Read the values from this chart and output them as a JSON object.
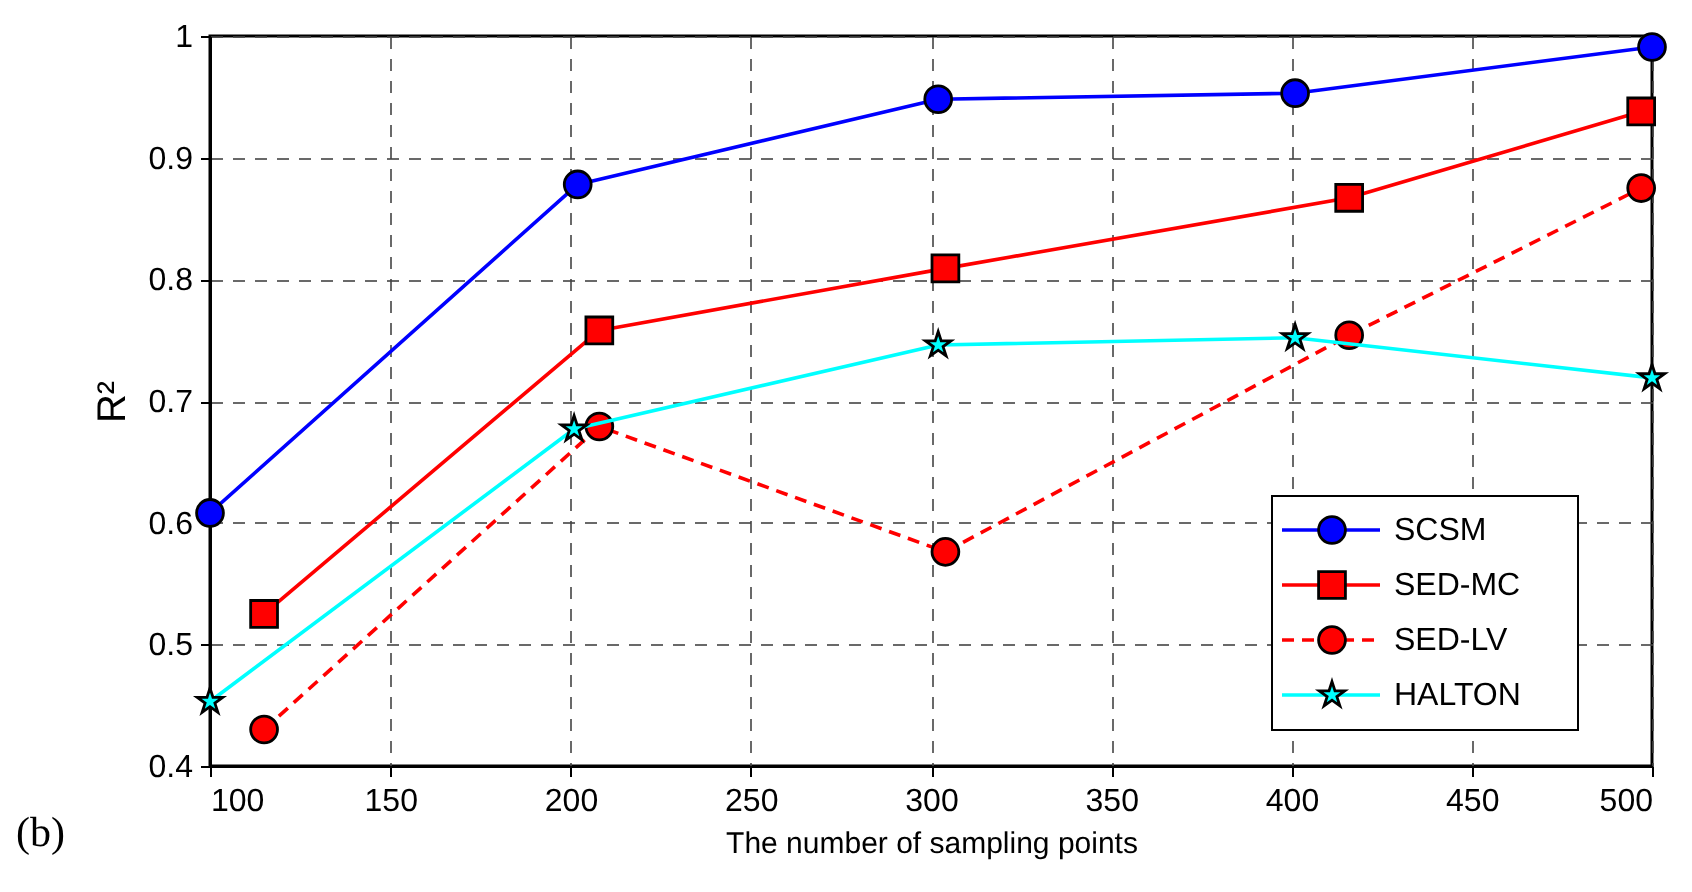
{
  "chart_data": {
    "type": "line",
    "xlabel": "The number of sampling points",
    "ylabel": "R²",
    "annotations": [
      "(b)"
    ],
    "xlim": [
      100,
      500
    ],
    "xticks": [
      100,
      150,
      200,
      250,
      300,
      350,
      400,
      450,
      500
    ],
    "ylim": [
      0.4,
      1
    ],
    "yticks": [
      0.4,
      0.5,
      0.6,
      0.7,
      0.8,
      0.9,
      1
    ],
    "grid": true,
    "legend": "bottom right",
    "series": [
      {
        "name": "SCSM",
        "color": "#0000ff",
        "marker": "circle",
        "line_style": "solid",
        "x": [
          100,
          202,
          302,
          401,
          500
        ],
        "values": [
          0.608,
          0.878,
          0.948,
          0.953,
          0.991
        ]
      },
      {
        "name": "SED-MC",
        "color": "#ff0000",
        "marker": "square",
        "line_style": "solid",
        "x": [
          115,
          208,
          304,
          416,
          497
        ],
        "values": [
          0.525,
          0.758,
          0.809,
          0.867,
          0.938
        ]
      },
      {
        "name": "SED-LV",
        "color": "#ff0000",
        "marker": "circle",
        "line_style": "dashed",
        "x": [
          115,
          208,
          304,
          416,
          497
        ],
        "values": [
          0.43,
          0.679,
          0.576,
          0.754,
          0.875
        ]
      },
      {
        "name": "HALTON",
        "color": "#00ffff",
        "marker": "star",
        "line_style": "solid",
        "x": [
          100,
          201,
          302,
          401,
          500
        ],
        "values": [
          0.453,
          0.677,
          0.746,
          0.752,
          0.719
        ]
      }
    ]
  }
}
